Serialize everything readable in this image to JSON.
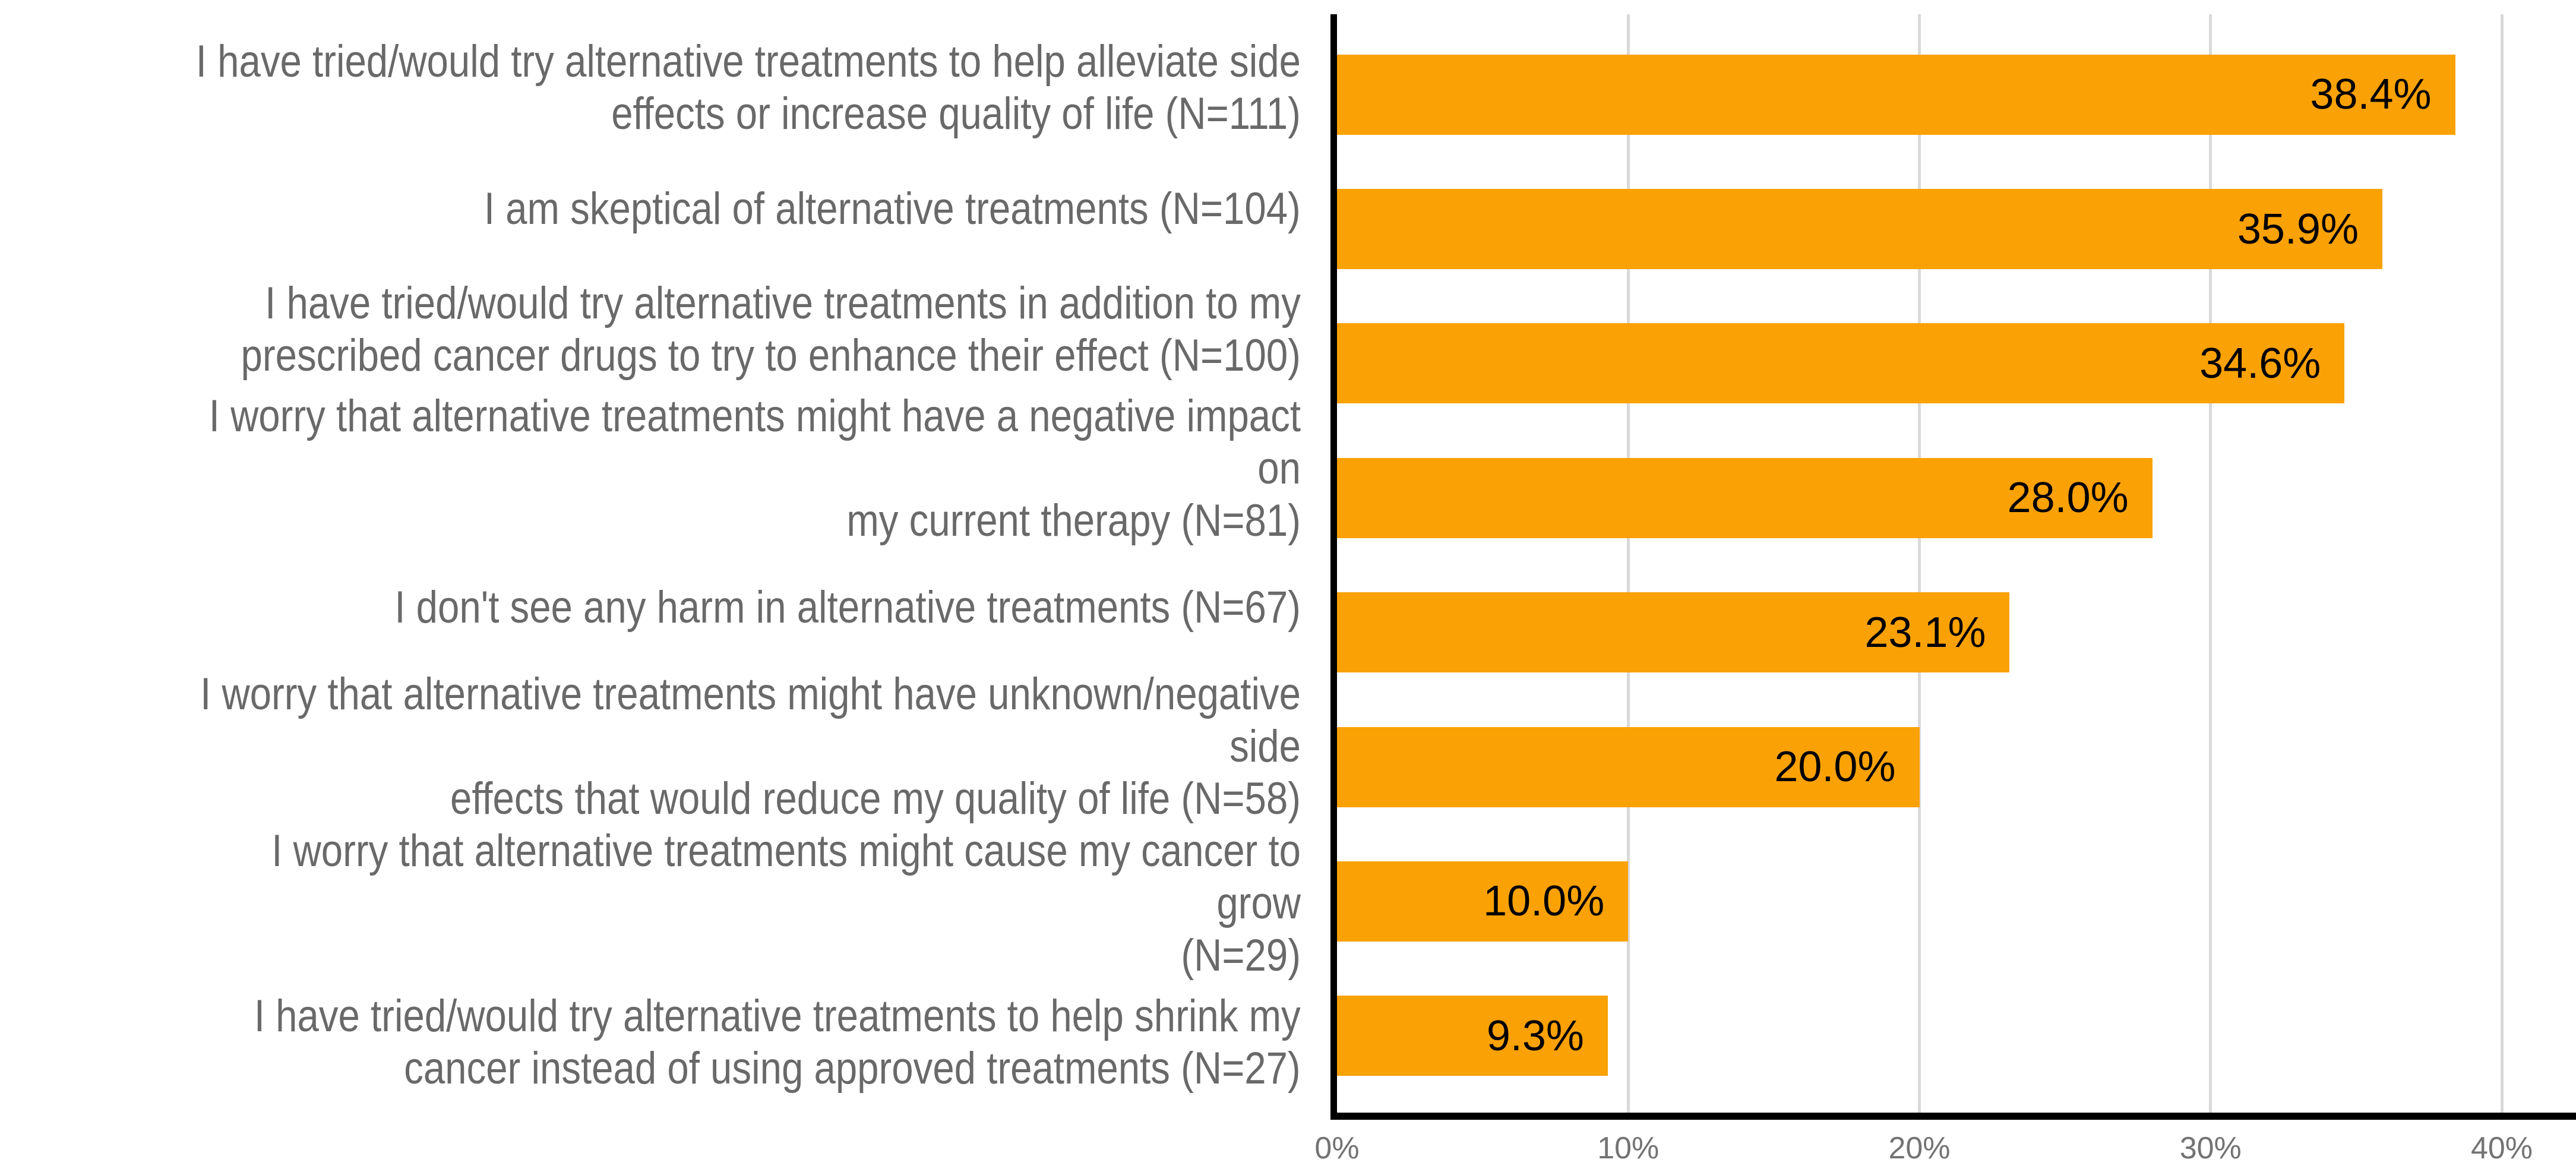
{
  "chart_data": {
    "type": "bar",
    "orientation": "horizontal",
    "title": "",
    "xlabel": "",
    "ylabel": "",
    "legend": "none",
    "grid": "vertical-only",
    "categories": [
      "I have tried/would try alternative treatments to help alleviate side\neffects or increase quality of life (N=111)",
      "I am skeptical of alternative treatments (N=104)",
      "I have tried/would try alternative treatments in addition to my\nprescribed cancer drugs to try to enhance their effect (N=100)",
      "I worry that alternative treatments might have a negative impact on\nmy current therapy (N=81)",
      "I don't see any harm in alternative treatments (N=67)",
      "I worry that alternative treatments might have unknown/negative side\neffects that would reduce my quality of life (N=58)",
      "I worry that alternative treatments might cause my cancer to grow\n(N=29)",
      "I have tried/would try alternative treatments to help shrink my\ncancer instead of using approved treatments (N=27)"
    ],
    "values": [
      38.4,
      35.9,
      34.6,
      28.0,
      23.1,
      20.0,
      10.0,
      9.3
    ],
    "value_labels": [
      "38.4%",
      "35.9%",
      "34.6%",
      "28.0%",
      "23.1%",
      "20.0%",
      "10.0%",
      "9.3%"
    ],
    "sample_sizes": [
      111,
      104,
      100,
      81,
      67,
      58,
      29,
      27
    ],
    "x_tick_values": [
      0,
      10,
      20,
      30,
      40
    ],
    "x_tick_labels": [
      "0%",
      "10%",
      "20%",
      "30%",
      "40%"
    ],
    "xlim": [
      0,
      42.57
    ],
    "bar_color": "#FAA105",
    "gridline_color": "#D9D9D9",
    "axis_color": "#000000",
    "category_label_color": "#696969",
    "tick_label_color": "#737373",
    "value_label_color": "#000000"
  }
}
